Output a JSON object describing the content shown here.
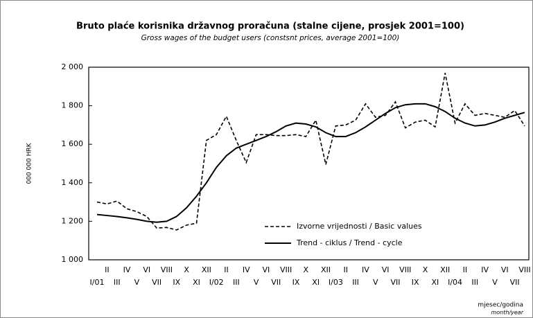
{
  "chart_data": {
    "type": "line",
    "title": "Bruto plaće korisnika državnog proračuna (stalne cijene, prosjek 2001=100)",
    "subtitle": "Gross wages of the budget users (constsnt prices, average 2001=100)",
    "y_label": "000 000 HRK",
    "x_label": "mjesec/godina",
    "x_label_en": "month/year",
    "categories": [
      "I/01",
      "II",
      "III",
      "IV",
      "V",
      "VI",
      "VII",
      "VIII",
      "IX",
      "X",
      "XI",
      "XII",
      "I/02",
      "II",
      "III",
      "IV",
      "V",
      "VI",
      "VII",
      "VIII",
      "IX",
      "X",
      "XI",
      "XII",
      "I/03",
      "II",
      "III",
      "IV",
      "V",
      "VI",
      "VII",
      "VIII",
      "IX",
      "X",
      "XI",
      "XII",
      "I/04",
      "II",
      "III",
      "IV",
      "V",
      "VI",
      "VII",
      "VIII"
    ],
    "series": [
      {
        "name": "Izvorne vrijednosti / Basic values",
        "color": "#000000",
        "dashed": true,
        "values": [
          1300,
          1290,
          1305,
          1265,
          1250,
          1225,
          1165,
          1168,
          1155,
          1180,
          1190,
          1620,
          1650,
          1745,
          1620,
          1505,
          1650,
          1650,
          1645,
          1645,
          1650,
          1640,
          1725,
          1495,
          1695,
          1700,
          1725,
          1810,
          1740,
          1750,
          1820,
          1685,
          1715,
          1725,
          1690,
          1970,
          1710,
          1810,
          1750,
          1760,
          1750,
          1740,
          1775,
          1695
        ]
      },
      {
        "name": "Trend - ciklus / Trend - cycle",
        "color": "#000000",
        "dashed": false,
        "values": [
          1235,
          1230,
          1225,
          1218,
          1210,
          1200,
          1195,
          1200,
          1225,
          1270,
          1330,
          1400,
          1480,
          1540,
          1580,
          1600,
          1620,
          1640,
          1665,
          1695,
          1710,
          1705,
          1690,
          1660,
          1640,
          1640,
          1660,
          1690,
          1725,
          1760,
          1790,
          1805,
          1810,
          1810,
          1795,
          1770,
          1735,
          1710,
          1695,
          1700,
          1715,
          1735,
          1750,
          1765
        ]
      }
    ],
    "ylim": [
      1000,
      2000
    ],
    "yticks": [
      {
        "value": 1000,
        "label": "1 000"
      },
      {
        "value": 1200,
        "label": "1 200"
      },
      {
        "value": 1400,
        "label": "1 400"
      },
      {
        "value": 1600,
        "label": "1 600"
      },
      {
        "value": 1800,
        "label": "1 800"
      },
      {
        "value": 2000,
        "label": "2 000"
      }
    ],
    "grid": false
  }
}
